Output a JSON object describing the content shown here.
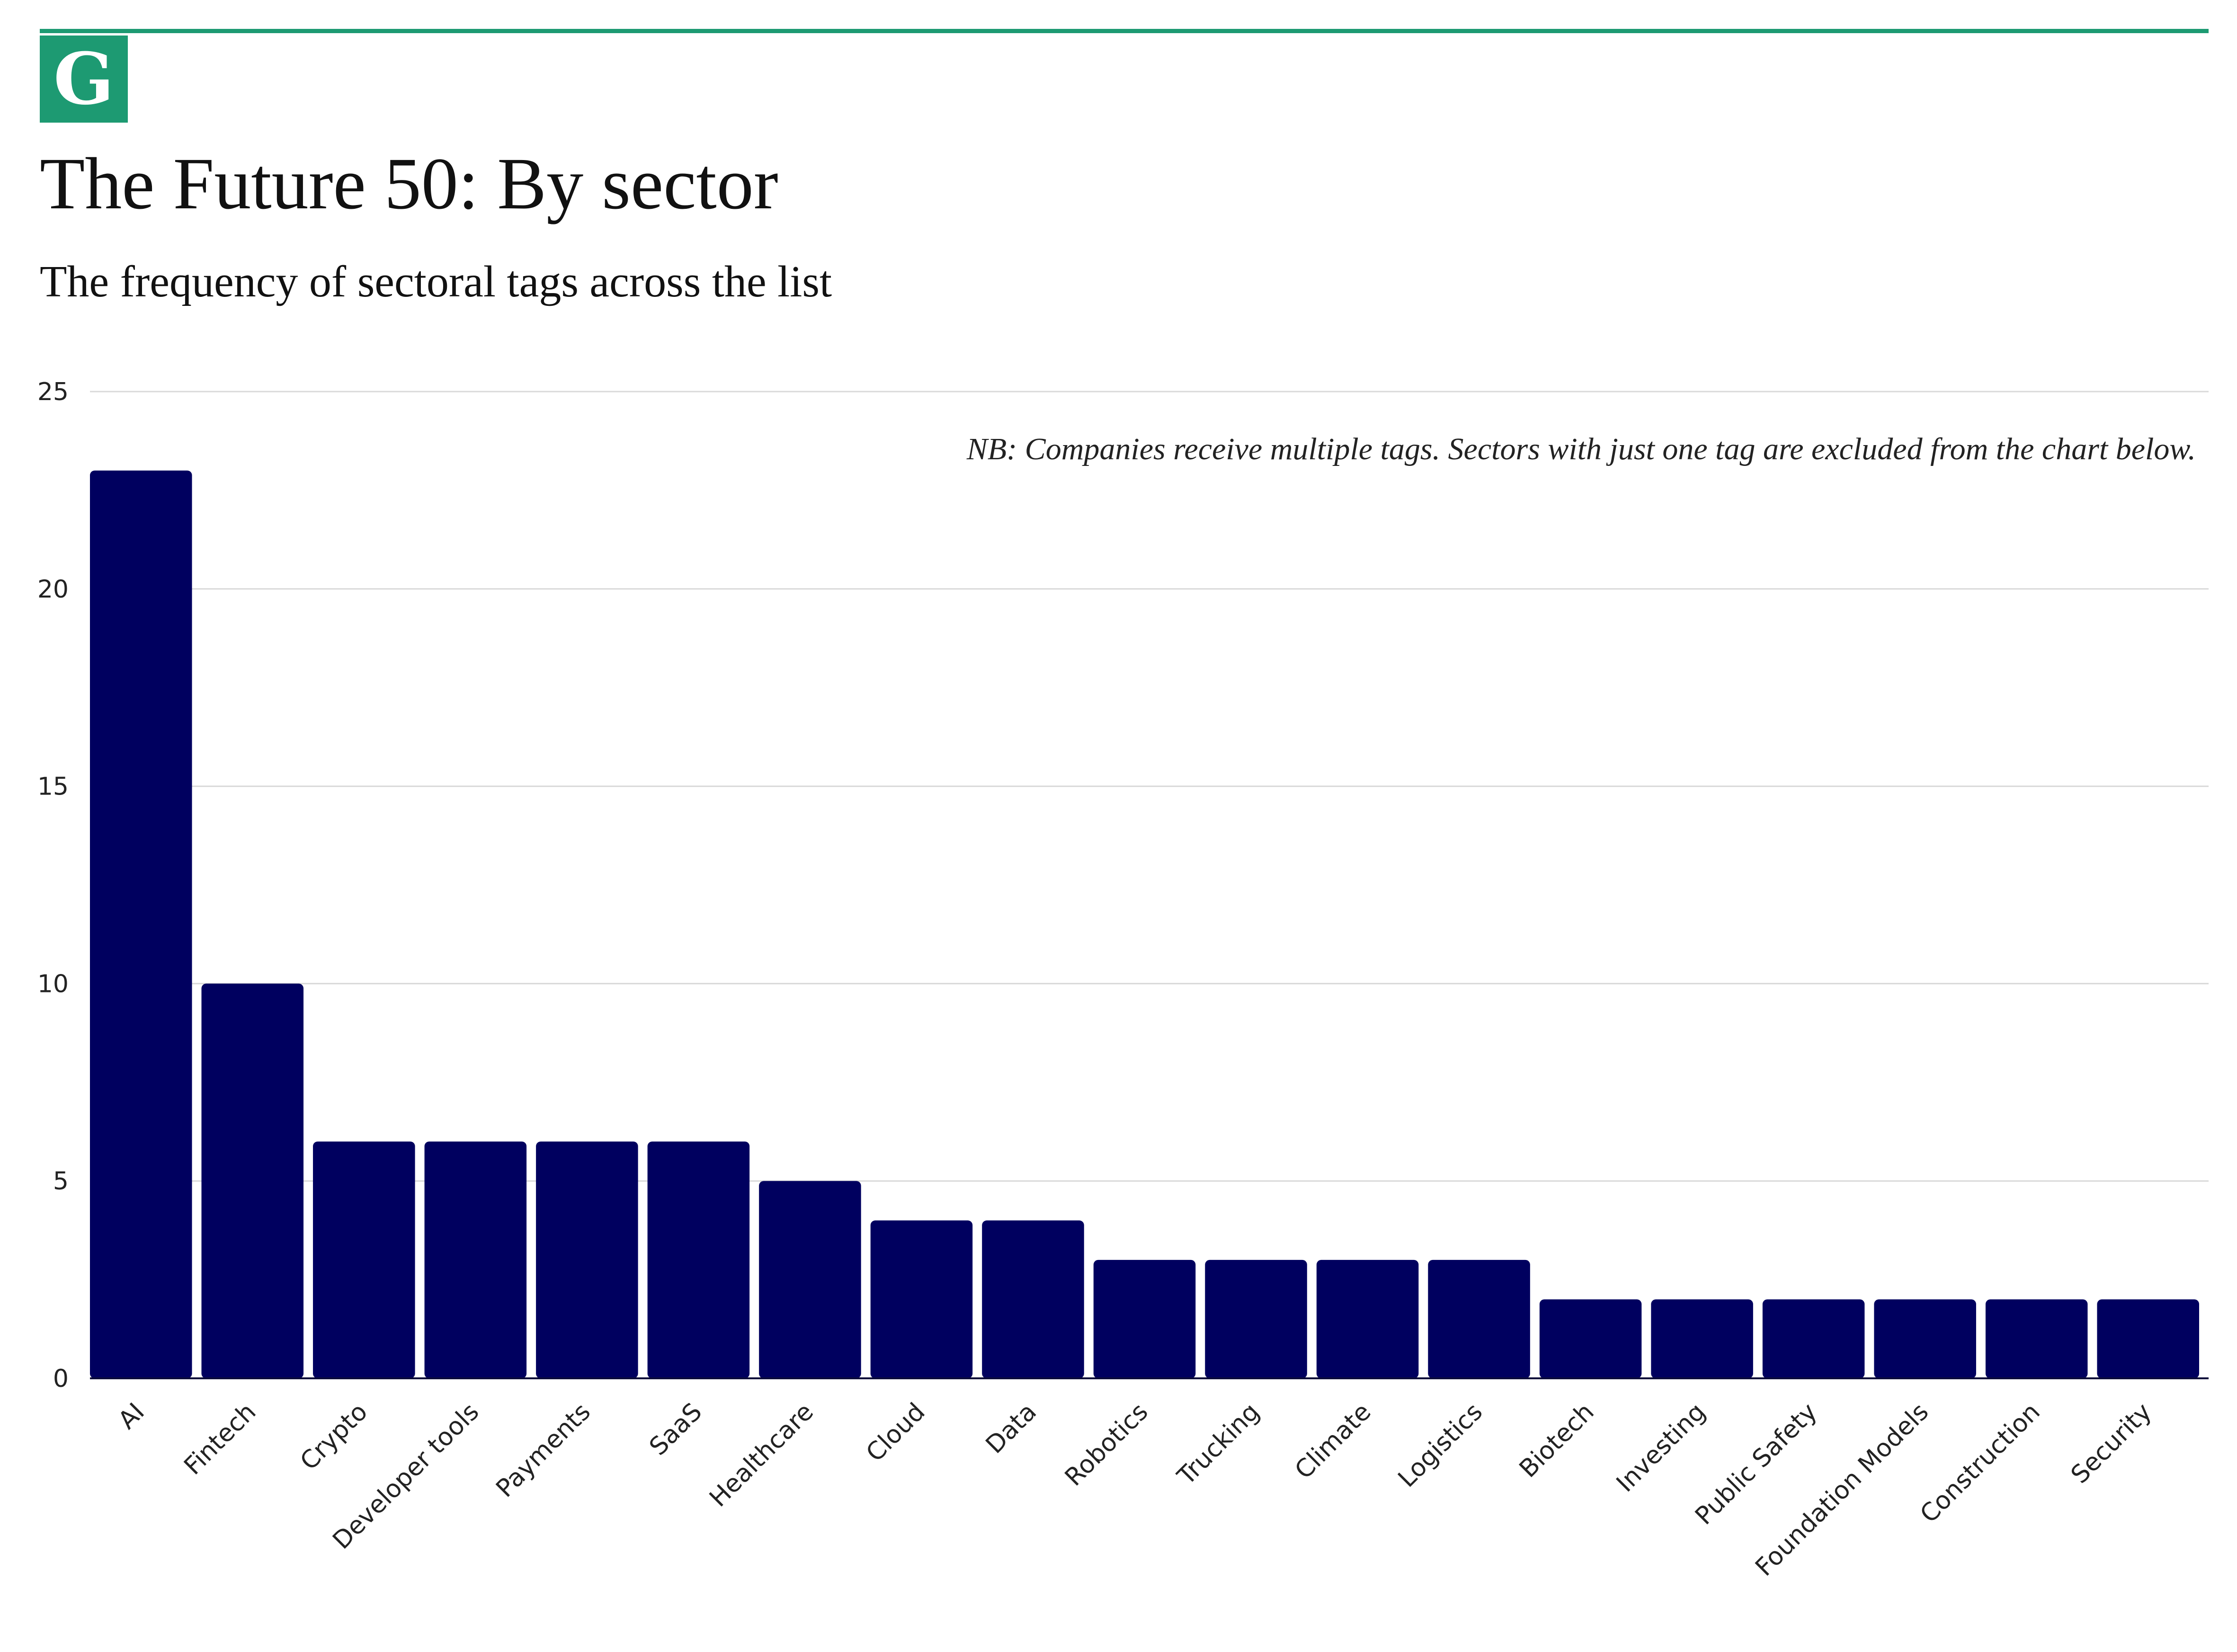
{
  "brand": {
    "logo_letter": "G",
    "accent_color": "#1d9a72",
    "bar_color": "#00005f"
  },
  "header": {
    "title": "The Future 50: By sector",
    "subtitle": "The frequency of sectoral tags across the list"
  },
  "chart_data": {
    "type": "bar",
    "title": "The Future 50: By sector",
    "subtitle": "The frequency of sectoral tags across the list",
    "note": "NB: Companies receive multiple tags. Sectors with just one tag are excluded from the chart below.",
    "xlabel": "",
    "ylabel": "",
    "ylim": [
      0,
      25
    ],
    "yticks": [
      0,
      5,
      10,
      15,
      20,
      25
    ],
    "grid": true,
    "legend": "none",
    "categories": [
      "AI",
      "Fintech",
      "Crypto",
      "Developer tools",
      "Payments",
      "SaaS",
      "Healthcare",
      "Cloud",
      "Data",
      "Robotics",
      "Trucking",
      "Climate",
      "Logistics",
      "Biotech",
      "Investing",
      "Public Safety",
      "Foundation Models",
      "Construction",
      "Security"
    ],
    "values": [
      23,
      10,
      6,
      6,
      6,
      6,
      5,
      4,
      4,
      3,
      3,
      3,
      3,
      2,
      2,
      2,
      2,
      2,
      2
    ]
  }
}
